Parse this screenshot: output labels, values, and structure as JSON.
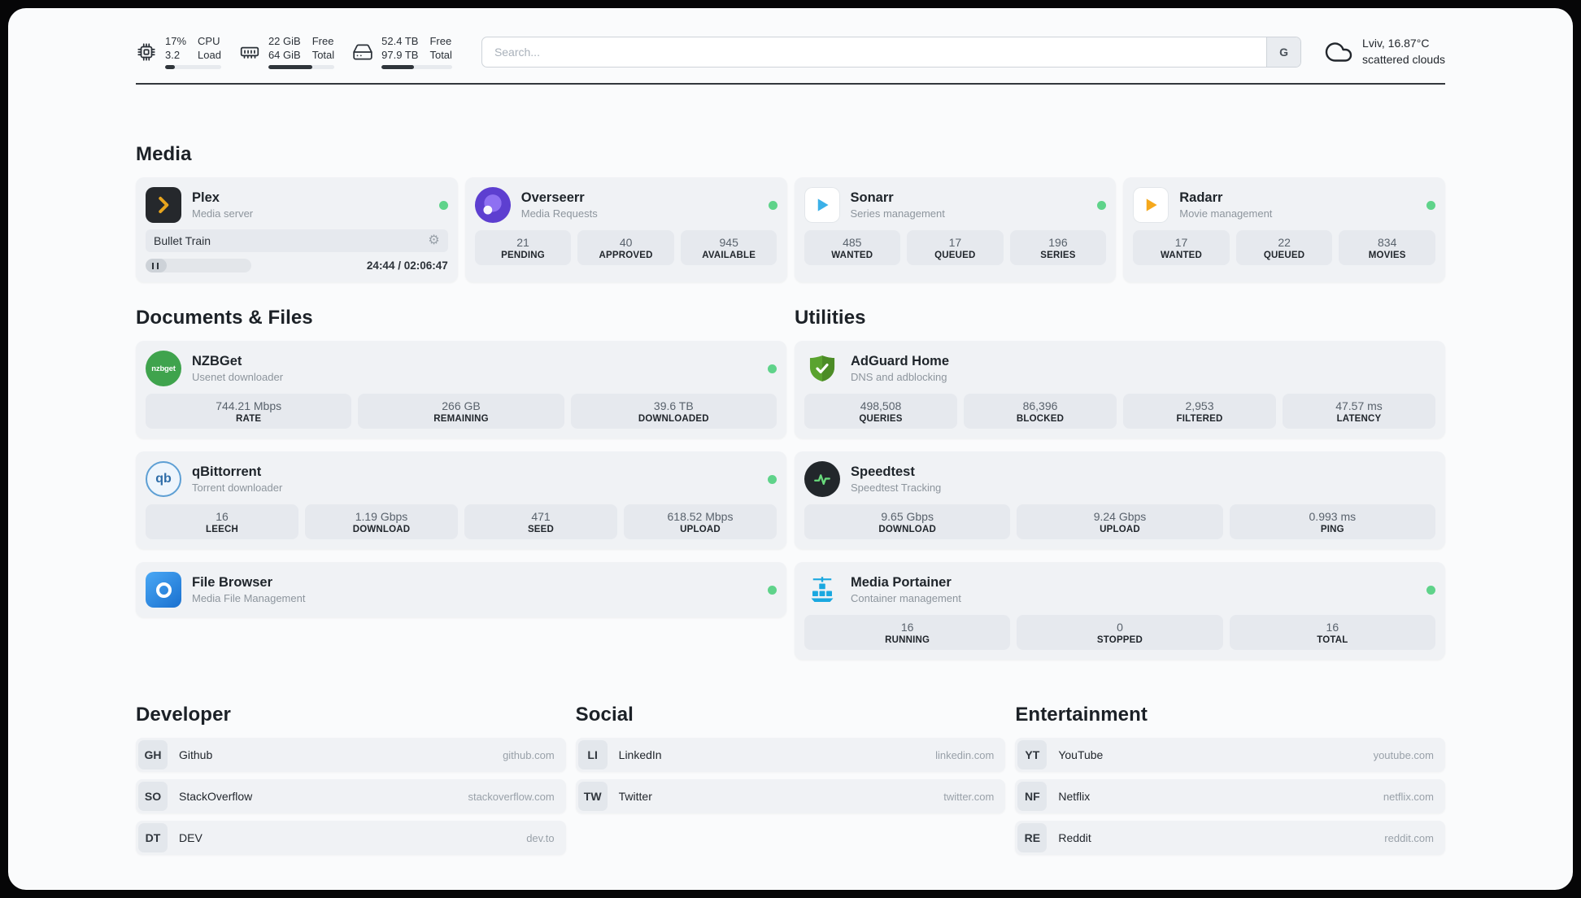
{
  "header": {
    "cpu": {
      "value": "17%",
      "sub": "3.2",
      "label1": "CPU",
      "label2": "Load",
      "percent": 17
    },
    "memory": {
      "value": "22 GiB",
      "sub": "64 GiB",
      "label1": "Free",
      "label2": "Total",
      "percent": 66
    },
    "disk": {
      "value": "52.4 TB",
      "sub": "97.9 TB",
      "label1": "Free",
      "label2": "Total",
      "percent": 46
    },
    "search": {
      "placeholder": "Search...",
      "button": "G"
    },
    "weather": {
      "location": "Lviv, 16.87°C",
      "condition": "scattered clouds"
    }
  },
  "sections": {
    "media": "Media",
    "documents": "Documents & Files",
    "utilities": "Utilities",
    "developer": "Developer",
    "social": "Social",
    "entertainment": "Entertainment"
  },
  "apps": {
    "plex": {
      "name": "Plex",
      "desc": "Media server",
      "now_playing": "Bullet Train",
      "time": "24:44 / 02:06:47",
      "progress_percent": 20,
      "online": true
    },
    "overseerr": {
      "name": "Overseerr",
      "desc": "Media Requests",
      "online": true,
      "stats": [
        {
          "value": "21",
          "label": "PENDING"
        },
        {
          "value": "40",
          "label": "APPROVED"
        },
        {
          "value": "945",
          "label": "AVAILABLE"
        }
      ]
    },
    "sonarr": {
      "name": "Sonarr",
      "desc": "Series management",
      "online": true,
      "stats": [
        {
          "value": "485",
          "label": "WANTED"
        },
        {
          "value": "17",
          "label": "QUEUED"
        },
        {
          "value": "196",
          "label": "SERIES"
        }
      ]
    },
    "radarr": {
      "name": "Radarr",
      "desc": "Movie management",
      "online": true,
      "stats": [
        {
          "value": "17",
          "label": "WANTED"
        },
        {
          "value": "22",
          "label": "QUEUED"
        },
        {
          "value": "834",
          "label": "MOVIES"
        }
      ]
    },
    "nzbget": {
      "name": "NZBGet",
      "desc": "Usenet downloader",
      "online": true,
      "icon_text": "nzbget",
      "stats": [
        {
          "value": "744.21 Mbps",
          "label": "RATE"
        },
        {
          "value": "266 GB",
          "label": "REMAINING"
        },
        {
          "value": "39.6 TB",
          "label": "DOWNLOADED"
        }
      ]
    },
    "qbittorrent": {
      "name": "qBittorrent",
      "desc": "Torrent downloader",
      "online": true,
      "icon_text": "qb",
      "stats": [
        {
          "value": "16",
          "label": "LEECH"
        },
        {
          "value": "1.19 Gbps",
          "label": "DOWNLOAD"
        },
        {
          "value": "471",
          "label": "SEED"
        },
        {
          "value": "618.52 Mbps",
          "label": "UPLOAD"
        }
      ]
    },
    "filebrowser": {
      "name": "File Browser",
      "desc": "Media File Management",
      "online": true
    },
    "adguard": {
      "name": "AdGuard Home",
      "desc": "DNS and adblocking",
      "stats": [
        {
          "value": "498,508",
          "label": "QUERIES"
        },
        {
          "value": "86,396",
          "label": "BLOCKED"
        },
        {
          "value": "2,953",
          "label": "FILTERED"
        },
        {
          "value": "47.57 ms",
          "label": "LATENCY"
        }
      ]
    },
    "speedtest": {
      "name": "Speedtest",
      "desc": "Speedtest Tracking",
      "stats": [
        {
          "value": "9.65 Gbps",
          "label": "DOWNLOAD"
        },
        {
          "value": "9.24 Gbps",
          "label": "UPLOAD"
        },
        {
          "value": "0.993 ms",
          "label": "PING"
        }
      ]
    },
    "portainer": {
      "name": "Media Portainer",
      "desc": "Container management",
      "online": true,
      "stats": [
        {
          "value": "16",
          "label": "RUNNING"
        },
        {
          "value": "0",
          "label": "STOPPED"
        },
        {
          "value": "16",
          "label": "TOTAL"
        }
      ]
    }
  },
  "bookmarks": {
    "developer": [
      {
        "abbr": "GH",
        "name": "Github",
        "domain": "github.com"
      },
      {
        "abbr": "SO",
        "name": "StackOverflow",
        "domain": "stackoverflow.com"
      },
      {
        "abbr": "DT",
        "name": "DEV",
        "domain": "dev.to"
      }
    ],
    "social": [
      {
        "abbr": "LI",
        "name": "LinkedIn",
        "domain": "linkedin.com"
      },
      {
        "abbr": "TW",
        "name": "Twitter",
        "domain": "twitter.com"
      }
    ],
    "entertainment": [
      {
        "abbr": "YT",
        "name": "YouTube",
        "domain": "youtube.com"
      },
      {
        "abbr": "NF",
        "name": "Netflix",
        "domain": "netflix.com"
      },
      {
        "abbr": "RE",
        "name": "Reddit",
        "domain": "reddit.com"
      }
    ]
  },
  "theme": {
    "online_dot": "#5fd38a",
    "bar_fill": "#2f353b",
    "divider": "#33383d",
    "card_bg": "#f0f2f5",
    "stat_bg": "#e6e9ee"
  }
}
